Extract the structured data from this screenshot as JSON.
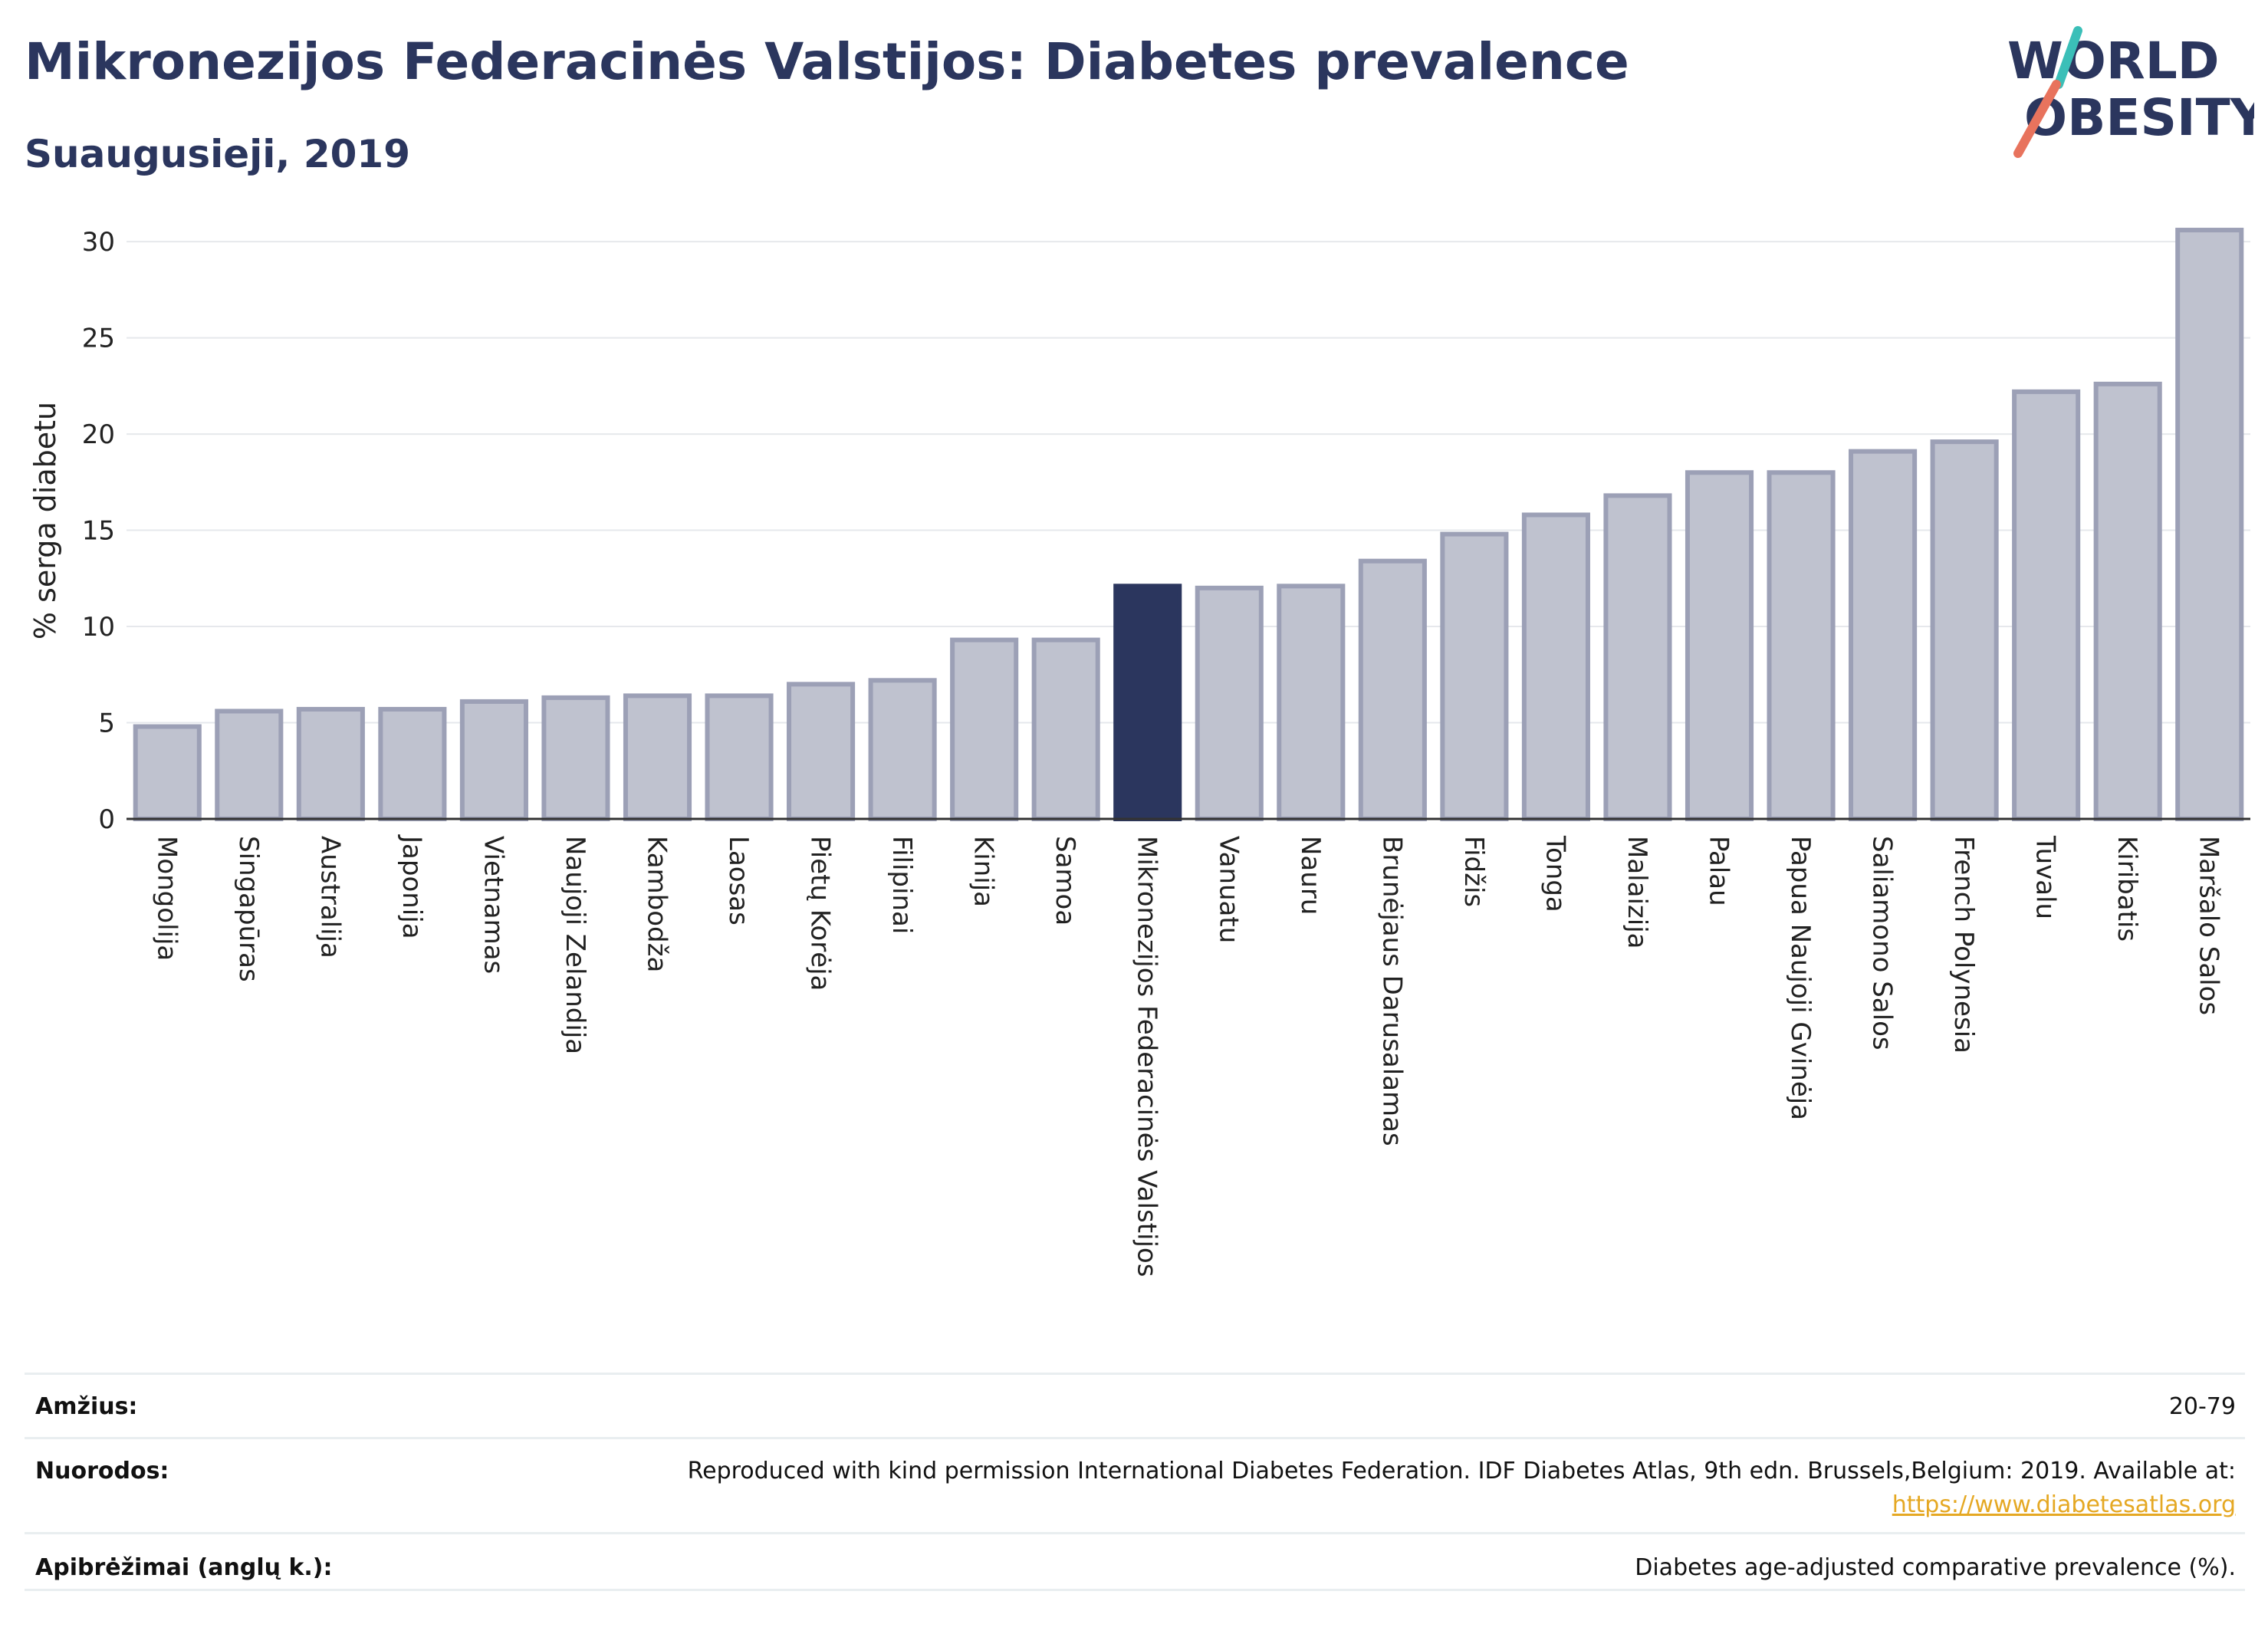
{
  "header": {
    "title": "Mikronezijos Federacinės Valstijos: Diabetes prevalence",
    "subtitle": "Suaugusieji, 2019",
    "logo_line1": "WORLD",
    "logo_line2": "OBESITY"
  },
  "chart_data": {
    "type": "bar",
    "ylabel": "% serga diabetu",
    "ylim": [
      0,
      31
    ],
    "yticks": [
      0,
      5,
      10,
      15,
      20,
      25,
      30
    ],
    "grid": true,
    "highlight": "Mikronezijos Federacinės Valstijos",
    "categories": [
      "Mongolija",
      "Singapūras",
      "Australija",
      "Japonija",
      "Vietnamas",
      "Naujoji Zelandija",
      "Kambodža",
      "Laosas",
      "Pietų Korėja",
      "Filipinai",
      "Kinija",
      "Samoa",
      "Mikronezijos Federacinės Valstijos",
      "Vanuatu",
      "Nauru",
      "Brunėjaus Darusalamas",
      "Fidžis",
      "Tonga",
      "Malaizija",
      "Palau",
      "Papua Naujoji Gvinėja",
      "Saliamono Salos",
      "French Polynesia",
      "Tuvalu",
      "Kiribatis",
      "Maršalo Salos"
    ],
    "values": [
      4.8,
      5.6,
      5.7,
      5.7,
      6.1,
      6.3,
      6.4,
      6.4,
      7.0,
      7.2,
      9.3,
      9.3,
      12.1,
      12.0,
      12.1,
      13.4,
      14.8,
      15.8,
      16.8,
      18.0,
      18.0,
      19.1,
      19.6,
      22.2,
      22.6,
      30.6
    ],
    "colors": {
      "bar": "#bfc2cf",
      "bar_border": "#9ca0b6",
      "highlight": "#2b365e"
    }
  },
  "meta": {
    "age_label": "Amžius:",
    "age_value": "20-79",
    "refs_label": "Nuorodos:",
    "refs_text": "Reproduced with kind permission International Diabetes Federation. IDF Diabetes Atlas, 9th edn. Brussels,Belgium: 2019. Available at:",
    "refs_link": "https://www.diabetesatlas.org",
    "def_label": "Apibrėžimai (anglų k.):",
    "def_value": "Diabetes age-adjusted comparative prevalence (%)."
  }
}
